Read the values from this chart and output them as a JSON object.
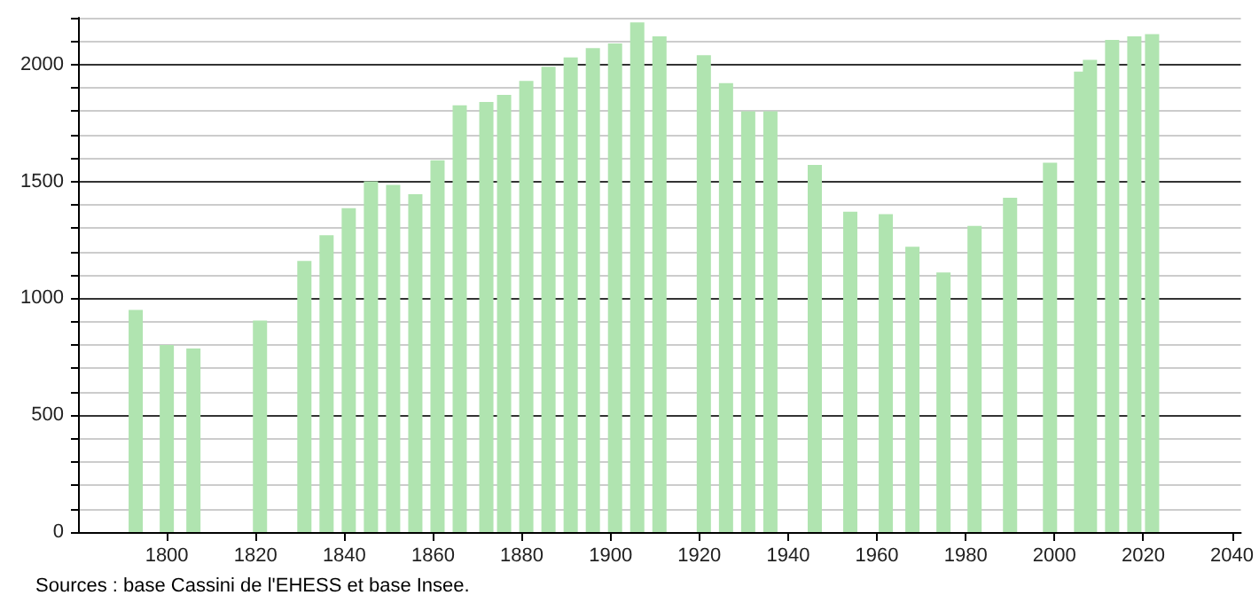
{
  "chart_data": {
    "type": "bar",
    "x": [
      1793,
      1800,
      1806,
      1821,
      1831,
      1836,
      1841,
      1846,
      1851,
      1856,
      1861,
      1866,
      1872,
      1876,
      1881,
      1886,
      1891,
      1896,
      1901,
      1906,
      1911,
      1921,
      1926,
      1931,
      1936,
      1946,
      1954,
      1962,
      1968,
      1975,
      1982,
      1990,
      1999,
      2006,
      2008,
      2013,
      2018,
      2022
    ],
    "values": [
      950,
      800,
      785,
      905,
      1160,
      1270,
      1385,
      1500,
      1485,
      1445,
      1590,
      1825,
      1840,
      1870,
      1930,
      1990,
      2030,
      2070,
      2090,
      2180,
      2120,
      2040,
      1920,
      1800,
      1800,
      1570,
      1370,
      1360,
      1220,
      1110,
      1310,
      1430,
      1580,
      1970,
      2020,
      2105,
      2120,
      2130
    ],
    "color": "#b0e4b0",
    "xlim": [
      1780,
      2042
    ],
    "xticks": [
      1800,
      1820,
      1840,
      1860,
      1880,
      1900,
      1920,
      1940,
      1960,
      1980,
      2000,
      2020,
      2040
    ],
    "ylim": [
      0,
      2200
    ],
    "yticks": [
      0,
      {
        "value": 100,
        "label": null
      },
      {
        "value": 200,
        "label": null
      },
      {
        "value": 300,
        "label": null
      },
      {
        "value": 400,
        "label": null
      },
      500,
      {
        "value": 600,
        "label": null
      },
      {
        "value": 700,
        "label": null
      },
      {
        "value": 800,
        "label": null
      },
      {
        "value": 900,
        "label": null
      },
      1000,
      {
        "value": 1100,
        "label": null
      },
      {
        "value": 1200,
        "label": null
      },
      {
        "value": 1300,
        "label": null
      },
      {
        "value": 1400,
        "label": null
      },
      1500,
      {
        "value": 1600,
        "label": null
      },
      {
        "value": 1700,
        "label": null
      },
      {
        "value": 1800,
        "label": null
      },
      {
        "value": 1900,
        "label": null
      },
      2000,
      {
        "value": 2100,
        "label": null
      },
      {
        "value": 2200,
        "label": null
      }
    ],
    "grid": "y",
    "annotations": [
      "Sources : base Cassini de l'EHESS et base Insee."
    ]
  }
}
